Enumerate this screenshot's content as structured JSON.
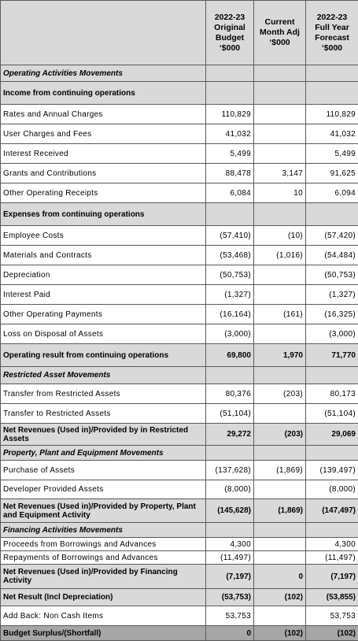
{
  "table": {
    "header": [
      "2022-23\nOriginal\nBudget\n‘$000",
      "Current\nMonth Adj\n‘$000",
      "2022-23\nFull Year\nForecast\n‘$000"
    ],
    "rows": [
      [
        "Operating Activities Movements"
      ],
      [
        "Income from continuing operations"
      ],
      [
        "Rates and Annual Charges",
        "110,829",
        null,
        "110,829"
      ],
      [
        "User Charges and Fees",
        "41,032",
        null,
        "41,032"
      ],
      [
        "Interest Received",
        "5,499",
        null,
        "5,499"
      ],
      [
        "Grants and Contributions",
        "88,478",
        "3,147",
        "91,625"
      ],
      [
        "Other Operating Receipts",
        "6,084",
        "10",
        "6,094"
      ],
      [
        "Expenses from continuing operations"
      ],
      [
        "Employee Costs",
        "(57,410)",
        "(10)",
        "(57,420)"
      ],
      [
        "Materials and Contracts",
        "(53,468)",
        "(1,016)",
        "(54,484)"
      ],
      [
        "Depreciation",
        "(50,753)",
        null,
        "(50,753)"
      ],
      [
        "Interest Paid",
        "(1,327)",
        null,
        "(1,327)"
      ],
      [
        "Other Operating Payments",
        "(16,164)",
        "(161)",
        "(16,325)"
      ],
      [
        "Loss on Disposal of Assets",
        "(3,000)",
        null,
        "(3,000)"
      ],
      [
        "Operating result from continuing operations",
        "69,800",
        "1,970",
        "71,770"
      ],
      [
        "Restricted Asset Movements"
      ],
      [
        "Transfer from Restricted Assets",
        "80,376",
        "(203)",
        "80,173"
      ],
      [
        "Transfer to Restricted Assets",
        "(51,104)",
        null,
        "(51,104)"
      ],
      [
        "Net Revenues (Used in)/Provided by in Restricted Assets",
        "29,272",
        "(203)",
        "29,069"
      ],
      [
        "Property, Plant and Equipment Movements"
      ],
      [
        "Purchase of Assets",
        "(137,628)",
        "(1,869)",
        "(139,497)"
      ],
      [
        "Developer Provided Assets",
        "(8,000)",
        null,
        "(8,000)"
      ],
      [
        "Net Revenues (Used in)/Provided by Property, Plant and Equipment Activity",
        "(145,628)",
        "(1,869)",
        "(147,497)"
      ],
      [
        "Financing Activities Movements"
      ],
      [
        "Proceeds from Borrowings and Advances",
        "4,300",
        null,
        "4,300"
      ],
      [
        "Repayments of Borrowings and Advances",
        "(11,497)",
        null,
        "(11,497)"
      ],
      [
        "Net Revenues (Used in)/Provided by Financing Activity",
        "(7,197)",
        "0",
        "(7,197)"
      ],
      [
        "Net Result (Incl Depreciation)",
        "(53,753)",
        "(102)",
        "(53,855)"
      ],
      [
        "Add Back: Non Cash Items",
        "53,753",
        null,
        "53,753"
      ],
      [
        "Budget Surplus/(Shortfall)",
        "0",
        "(102)",
        "(102)"
      ]
    ]
  }
}
